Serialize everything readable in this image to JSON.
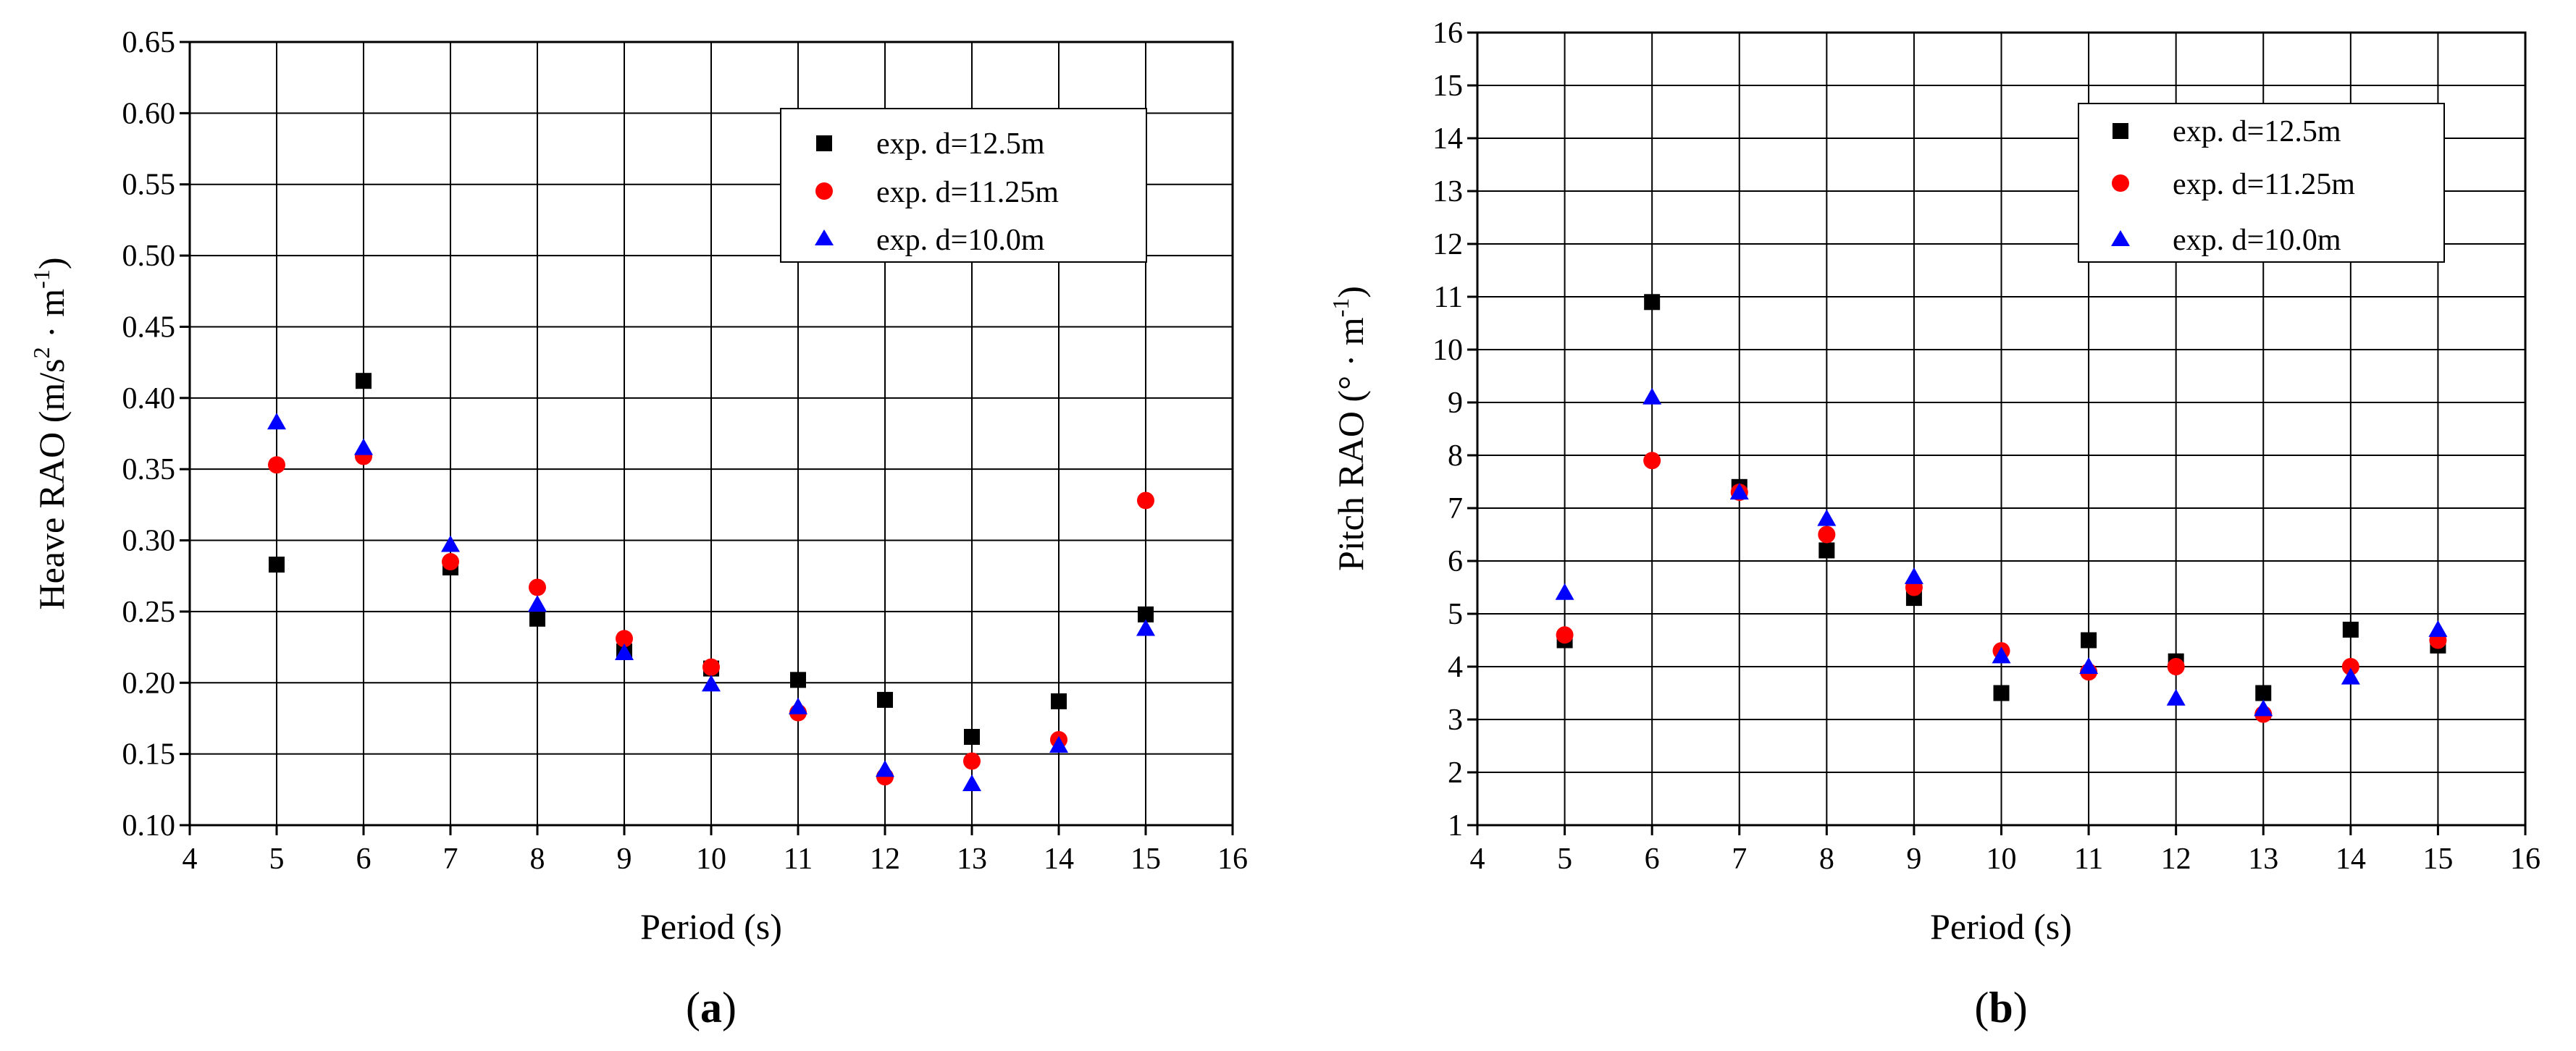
{
  "chart_data": [
    {
      "type": "scatter",
      "panel": "(a)",
      "panel_open": "(",
      "panel_letter": "a",
      "panel_close": ")",
      "title": "",
      "xlabel": "Period (s)",
      "ylabel_main": "Heave RAO (m/s",
      "ylabel_sup1": "2",
      "ylabel_mid": " · m",
      "ylabel_sup2": "-1",
      "ylabel_end": ")",
      "xlim": [
        4,
        16
      ],
      "ylim": [
        0.1,
        0.65
      ],
      "xticks": [
        4,
        5,
        6,
        7,
        8,
        9,
        10,
        11,
        12,
        13,
        14,
        15,
        16
      ],
      "yticks": [
        0.1,
        0.15,
        0.2,
        0.25,
        0.3,
        0.35,
        0.4,
        0.45,
        0.5,
        0.55,
        0.6,
        0.65
      ],
      "xtick_labels": [
        "4",
        "5",
        "6",
        "7",
        "8",
        "9",
        "10",
        "11",
        "12",
        "13",
        "14",
        "15",
        "16"
      ],
      "ytick_labels": [
        "0.10",
        "0.15",
        "0.20",
        "0.25",
        "0.30",
        "0.35",
        "0.40",
        "0.45",
        "0.50",
        "0.55",
        "0.60",
        "0.65"
      ],
      "grid": true,
      "legend_position": "top-right",
      "series": [
        {
          "name": "exp. d=12.5m",
          "marker": "square",
          "color": "#000000",
          "x": [
            5,
            6,
            7,
            8,
            9,
            10,
            11,
            12,
            13,
            14,
            15
          ],
          "y": [
            0.283,
            0.412,
            0.281,
            0.245,
            0.222,
            0.21,
            0.202,
            0.188,
            0.162,
            0.187,
            0.248
          ]
        },
        {
          "name": "exp. d=11.25m",
          "marker": "circle",
          "color": "#ff0000",
          "x": [
            5,
            6,
            7,
            8,
            9,
            10,
            11,
            12,
            13,
            14,
            15
          ],
          "y": [
            0.353,
            0.359,
            0.285,
            0.267,
            0.231,
            0.211,
            0.179,
            0.134,
            0.145,
            0.16,
            0.328
          ]
        },
        {
          "name": "exp. d=10.0m",
          "marker": "triangle",
          "color": "#0000ff",
          "x": [
            5,
            6,
            7,
            8,
            9,
            10,
            11,
            12,
            13,
            14,
            15
          ],
          "y": [
            0.383,
            0.365,
            0.297,
            0.255,
            0.221,
            0.199,
            0.183,
            0.139,
            0.129,
            0.156,
            0.238
          ]
        }
      ]
    },
    {
      "type": "scatter",
      "panel": "(b)",
      "panel_open": "(",
      "panel_letter": "b",
      "panel_close": ")",
      "title": "",
      "xlabel": "Period (s)",
      "ylabel_main": "Pitch RAO (° · m",
      "ylabel_sup1": "",
      "ylabel_mid": "",
      "ylabel_sup2": "-1",
      "ylabel_end": ")",
      "xlim": [
        4,
        16
      ],
      "ylim": [
        1,
        16
      ],
      "xticks": [
        4,
        5,
        6,
        7,
        8,
        9,
        10,
        11,
        12,
        13,
        14,
        15,
        16
      ],
      "yticks": [
        1,
        2,
        3,
        4,
        5,
        6,
        7,
        8,
        9,
        10,
        11,
        12,
        13,
        14,
        15,
        16
      ],
      "xtick_labels": [
        "4",
        "5",
        "6",
        "7",
        "8",
        "9",
        "10",
        "11",
        "12",
        "13",
        "14",
        "15",
        "16"
      ],
      "ytick_labels": [
        "1",
        "2",
        "3",
        "4",
        "5",
        "6",
        "7",
        "8",
        "9",
        "10",
        "11",
        "12",
        "13",
        "14",
        "15",
        "16"
      ],
      "grid": true,
      "legend_position": "top-right",
      "series": [
        {
          "name": "exp. d=12.5m",
          "marker": "square",
          "color": "#000000",
          "x": [
            5,
            6,
            7,
            8,
            9,
            10,
            11,
            12,
            13,
            14,
            15
          ],
          "y": [
            4.5,
            10.9,
            7.4,
            6.2,
            5.3,
            3.5,
            4.5,
            4.1,
            3.5,
            4.7,
            4.4
          ]
        },
        {
          "name": "exp. d=11.25m",
          "marker": "circle",
          "color": "#ff0000",
          "x": [
            5,
            6,
            7,
            8,
            9,
            10,
            11,
            12,
            13,
            14,
            15
          ],
          "y": [
            4.6,
            7.9,
            7.3,
            6.5,
            5.5,
            4.3,
            3.9,
            4.0,
            3.1,
            4.0,
            4.5
          ]
        },
        {
          "name": "exp. d=10.0m",
          "marker": "triangle",
          "color": "#0000ff",
          "x": [
            5,
            6,
            7,
            8,
            9,
            10,
            11,
            12,
            13,
            14,
            15
          ],
          "y": [
            5.4,
            9.1,
            7.3,
            6.8,
            5.7,
            4.2,
            4.0,
            3.4,
            3.2,
            3.8,
            4.7
          ]
        }
      ]
    }
  ]
}
